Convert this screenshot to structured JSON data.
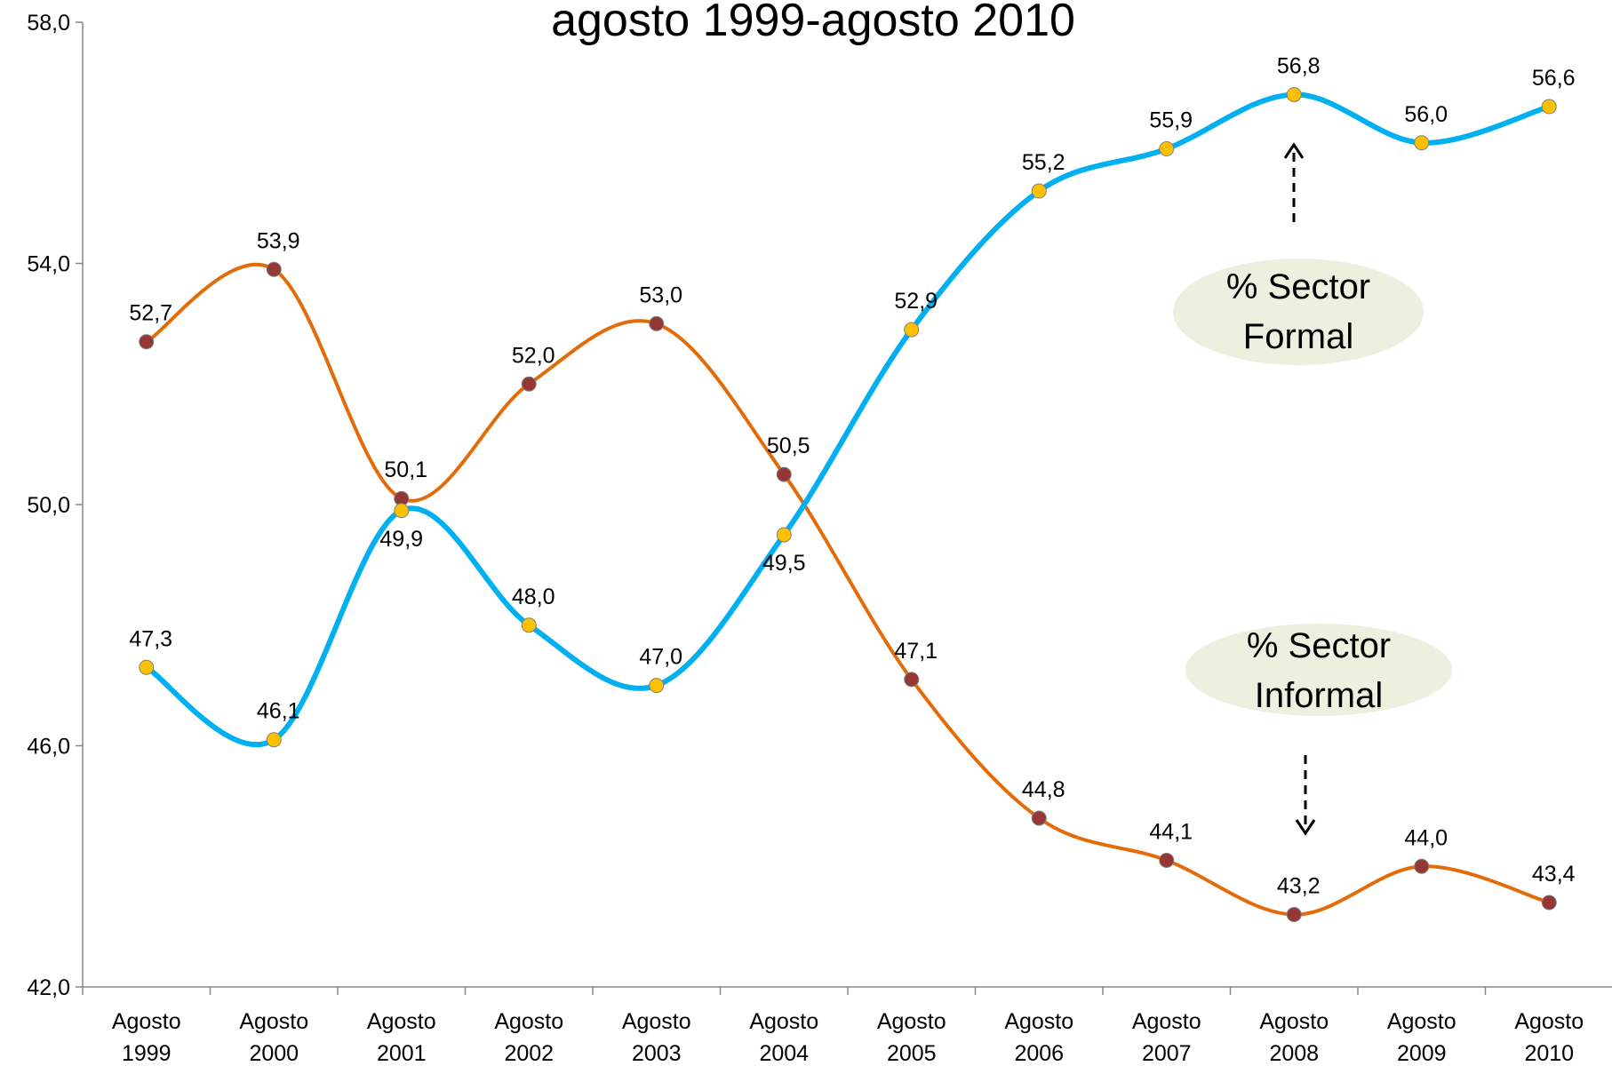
{
  "chart_data": {
    "type": "line",
    "title": "agosto 1999-agosto 2010",
    "categories": [
      "Agosto 1999",
      "Agosto 2000",
      "Agosto 2001",
      "Agosto 2002",
      "Agosto 2003",
      "Agosto 2004",
      "Agosto 2005",
      "Agosto 2006",
      "Agosto 2007",
      "Agosto 2008",
      "Agosto 2009",
      "Agosto 2010"
    ],
    "series": [
      {
        "color": "#00b0f0",
        "marker_color": "#ffc000",
        "values": [
          47.3,
          46.1,
          49.9,
          48.0,
          47.0,
          49.5,
          52.9,
          55.2,
          55.9,
          56.8,
          56.0,
          56.6
        ],
        "value_labels": [
          "47,3",
          "46,1",
          "49,9",
          "48,0",
          "47,0",
          "49,5",
          "52,9",
          "55,2",
          "55,9",
          "56,8",
          "56,0",
          "56,6"
        ]
      },
      {
        "color": "#e36c09",
        "marker_color": "#953735",
        "values": [
          52.7,
          53.9,
          50.1,
          52.0,
          53.0,
          50.5,
          47.1,
          44.8,
          44.1,
          43.2,
          44.0,
          43.4
        ],
        "value_labels": [
          "52,7",
          "53,9",
          "50,1",
          "52,0",
          "53,0",
          "50,5",
          "47,1",
          "44,8",
          "44,1",
          "43,2",
          "44,0",
          "43,4"
        ]
      }
    ],
    "ylim": [
      42,
      58
    ],
    "yticks": [
      {
        "value": 42,
        "label": "42,0"
      },
      {
        "value": 46,
        "label": "46,0"
      },
      {
        "value": 50,
        "label": "50,0"
      },
      {
        "value": 54,
        "label": "54,0"
      },
      {
        "value": 58,
        "label": "58,0"
      }
    ],
    "annotations": [
      "% Sector Formal",
      "% Sector Informal"
    ]
  }
}
